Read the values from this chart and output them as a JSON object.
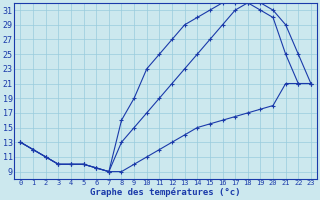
{
  "xlabel": "Graphe des températures (°c)",
  "bg_color": "#cce8ee",
  "line_color": "#1a3aaa",
  "grid_color": "#99ccdd",
  "xmin": -0.5,
  "xmax": 23.5,
  "ymin": 8,
  "ymax": 32,
  "yticks": [
    9,
    11,
    13,
    15,
    17,
    19,
    21,
    23,
    25,
    27,
    29,
    31
  ],
  "xticks": [
    0,
    1,
    2,
    3,
    4,
    5,
    6,
    7,
    8,
    9,
    10,
    11,
    12,
    13,
    14,
    15,
    16,
    17,
    18,
    19,
    20,
    21,
    22,
    23
  ],
  "line1_x": [
    0,
    1,
    2,
    3,
    4,
    5,
    6,
    7,
    8,
    9,
    10,
    11,
    12,
    13,
    14,
    15,
    16,
    17,
    18,
    19,
    20,
    21,
    22,
    23
  ],
  "line1_y": [
    13,
    12,
    11,
    10,
    10,
    10,
    9.5,
    9,
    9,
    10,
    11,
    12,
    13,
    14,
    15,
    15.5,
    16,
    16.5,
    17,
    17.5,
    18,
    21,
    21,
    21
  ],
  "line2_x": [
    0,
    1,
    2,
    3,
    4,
    5,
    6,
    7,
    8,
    9,
    10,
    11,
    12,
    13,
    14,
    15,
    16,
    17,
    18,
    19,
    20,
    21,
    22,
    23
  ],
  "line2_y": [
    13,
    12,
    11,
    10,
    10,
    10,
    9.5,
    9,
    16,
    19,
    23,
    25,
    27,
    29,
    30,
    31,
    32,
    32,
    32,
    31,
    30,
    25,
    21,
    21
  ],
  "line3_x": [
    0,
    1,
    2,
    3,
    4,
    5,
    6,
    7,
    8,
    9,
    10,
    11,
    12,
    13,
    14,
    15,
    16,
    17,
    18,
    19,
    20,
    21,
    22,
    23
  ],
  "line3_y": [
    13,
    12,
    11,
    10,
    10,
    10,
    9.5,
    9,
    13,
    15,
    17,
    19,
    21,
    23,
    25,
    27,
    29,
    31,
    32,
    32,
    31,
    29,
    25,
    21
  ]
}
